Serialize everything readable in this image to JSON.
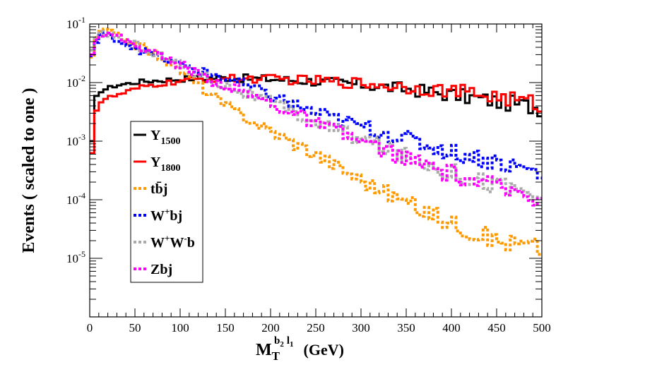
{
  "chart_data": {
    "type": "line",
    "style": "step-histogram",
    "xlabel": {
      "main": "M",
      "sub": "T",
      "sup1": "b",
      "sup1_sub": "2",
      "sup2": "l",
      "sup2_sub": "1",
      "units": "(GeV)"
    },
    "ylabel": "Events ( scaled to one )",
    "xlim": [
      0,
      500
    ],
    "ylim_log10": [
      -6,
      -1
    ],
    "yscale": "log",
    "x_ticks": [
      "0",
      "50",
      "100",
      "150",
      "200",
      "250",
      "300",
      "350",
      "400",
      "450",
      "500"
    ],
    "y_ticks": [
      {
        "base": "10",
        "exp": "-1"
      },
      {
        "base": "10",
        "exp": "-2"
      },
      {
        "base": "10",
        "exp": "-3"
      },
      {
        "base": "10",
        "exp": "-4"
      },
      {
        "base": "10",
        "exp": "-5"
      }
    ],
    "bin_width": 5,
    "series": [
      {
        "name": "Y",
        "sub": "1500",
        "color": "#000000",
        "dash": "solid",
        "anchors": [
          [
            0,
            0.0007
          ],
          [
            2,
            0.0007
          ],
          [
            5,
            0.0045
          ],
          [
            10,
            0.007
          ],
          [
            20,
            0.008
          ],
          [
            30,
            0.009
          ],
          [
            40,
            0.0095
          ],
          [
            60,
            0.0105
          ],
          [
            80,
            0.011
          ],
          [
            100,
            0.0115
          ],
          [
            120,
            0.012
          ],
          [
            150,
            0.012
          ],
          [
            200,
            0.0115
          ],
          [
            250,
            0.0105
          ],
          [
            300,
            0.0092
          ],
          [
            350,
            0.0078
          ],
          [
            400,
            0.0062
          ],
          [
            450,
            0.0048
          ],
          [
            500,
            0.0037
          ]
        ]
      },
      {
        "name": "Y",
        "sub": "1800",
        "color": "#ff0000",
        "dash": "solid",
        "anchors": [
          [
            0,
            0.0005
          ],
          [
            2,
            0.0005
          ],
          [
            5,
            0.0025
          ],
          [
            10,
            0.0045
          ],
          [
            20,
            0.0055
          ],
          [
            30,
            0.006
          ],
          [
            40,
            0.0068
          ],
          [
            60,
            0.0085
          ],
          [
            80,
            0.0095
          ],
          [
            100,
            0.0105
          ],
          [
            120,
            0.0112
          ],
          [
            150,
            0.0118
          ],
          [
            200,
            0.0115
          ],
          [
            250,
            0.0108
          ],
          [
            300,
            0.0098
          ],
          [
            350,
            0.0085
          ],
          [
            400,
            0.0072
          ],
          [
            450,
            0.0058
          ],
          [
            500,
            0.0042
          ]
        ]
      },
      {
        "name": "tb̄j",
        "sub": "",
        "color": "#ff9900",
        "dash": "dashed",
        "anchors": [
          [
            0,
            0.02
          ],
          [
            5,
            0.04
          ],
          [
            10,
            0.07
          ],
          [
            15,
            0.08
          ],
          [
            25,
            0.07
          ],
          [
            50,
            0.045
          ],
          [
            75,
            0.03
          ],
          [
            100,
            0.017
          ],
          [
            125,
            0.008
          ],
          [
            150,
            0.004
          ],
          [
            200,
            0.0015
          ],
          [
            250,
            0.0006
          ],
          [
            300,
            0.00022
          ],
          [
            350,
            9e-05
          ],
          [
            400,
            4e-05
          ],
          [
            450,
            2e-05
          ],
          [
            500,
            1.5e-05
          ]
        ]
      },
      {
        "name": "W",
        "sup": "+",
        "tail": "bj",
        "sub": "",
        "color": "#0000ff",
        "dash": "dashed",
        "anchors": [
          [
            0,
            0.02
          ],
          [
            5,
            0.04
          ],
          [
            10,
            0.06
          ],
          [
            15,
            0.065
          ],
          [
            25,
            0.06
          ],
          [
            50,
            0.04
          ],
          [
            75,
            0.028
          ],
          [
            100,
            0.02
          ],
          [
            125,
            0.015
          ],
          [
            150,
            0.012
          ],
          [
            200,
            0.006
          ],
          [
            250,
            0.003
          ],
          [
            300,
            0.0018
          ],
          [
            350,
            0.0011
          ],
          [
            400,
            0.00065
          ],
          [
            450,
            0.00045
          ],
          [
            500,
            0.00028
          ]
        ]
      },
      {
        "name": "W",
        "sup": "+",
        "mid": "W",
        "sup2": "-",
        "tail": "b",
        "sub": "",
        "color": "#aaaaaa",
        "dash": "dashed",
        "anchors": [
          [
            0,
            0.025
          ],
          [
            5,
            0.045
          ],
          [
            10,
            0.065
          ],
          [
            15,
            0.07
          ],
          [
            25,
            0.065
          ],
          [
            50,
            0.045
          ],
          [
            75,
            0.03
          ],
          [
            100,
            0.02
          ],
          [
            125,
            0.013
          ],
          [
            150,
            0.009
          ],
          [
            200,
            0.0045
          ],
          [
            250,
            0.0021
          ],
          [
            300,
            0.0011
          ],
          [
            350,
            0.00055
          ],
          [
            400,
            0.0003
          ],
          [
            450,
            0.00018
          ],
          [
            500,
            0.00012
          ]
        ]
      },
      {
        "name": "Zbj",
        "sub": "",
        "color": "#ff00ff",
        "dash": "dashed",
        "anchors": [
          [
            0,
            0.025
          ],
          [
            5,
            0.045
          ],
          [
            10,
            0.065
          ],
          [
            15,
            0.07
          ],
          [
            25,
            0.065
          ],
          [
            50,
            0.045
          ],
          [
            75,
            0.03
          ],
          [
            100,
            0.02
          ],
          [
            125,
            0.013
          ],
          [
            150,
            0.009
          ],
          [
            200,
            0.0045
          ],
          [
            250,
            0.002
          ],
          [
            300,
            0.001
          ],
          [
            350,
            0.0005
          ],
          [
            400,
            0.00027
          ],
          [
            450,
            0.00016
          ],
          [
            500,
            0.00011
          ]
        ]
      }
    ],
    "legend_position": "left-middle"
  }
}
